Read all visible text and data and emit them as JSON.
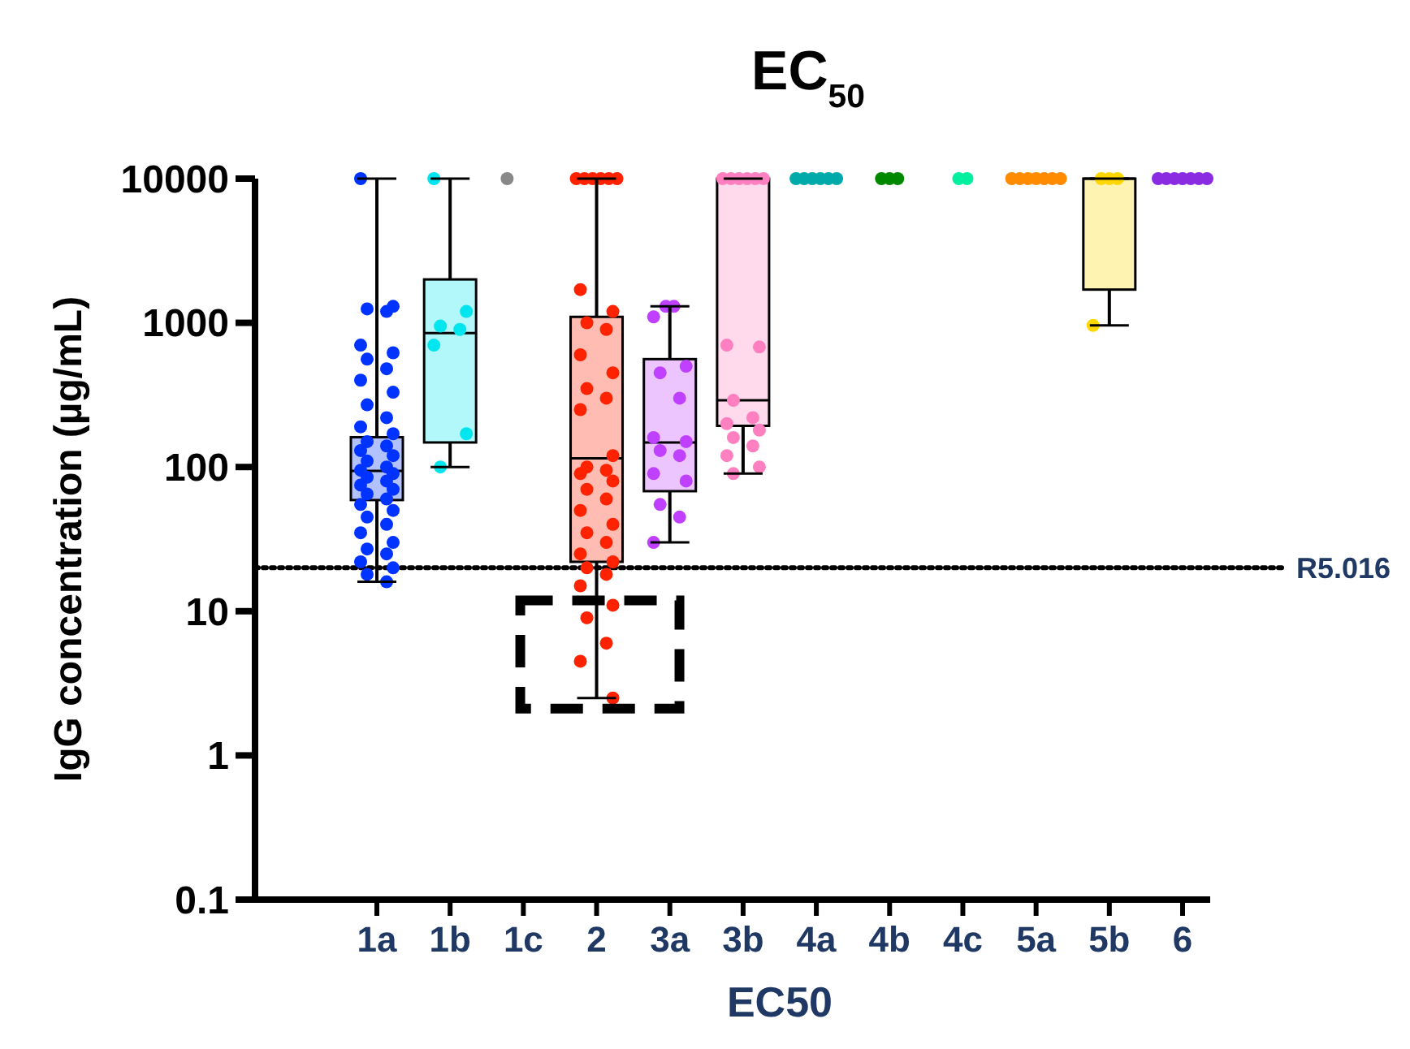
{
  "chart_data": {
    "type": "box",
    "title": "EC$_{50}$",
    "xlabel": "EC50",
    "ylabel": "IgG concentration (µg/mL)",
    "categories": [
      "1a",
      "1b",
      "1c",
      "2",
      "3a",
      "3b",
      "4a",
      "4b",
      "4c",
      "5a",
      "5b",
      "6"
    ],
    "log": true,
    "ylim": [
      0.1,
      10000
    ],
    "yticks": [
      0.1,
      1,
      10,
      100,
      1000,
      10000
    ],
    "grid": false,
    "ref_lines": [
      {
        "axis": "y",
        "value": 20,
        "label": "R5.016",
        "line_style": "dotted",
        "color": "#000000"
      }
    ],
    "series": [
      {
        "type": "box",
        "colors": [
          "#0033ff",
          "#00e5ee",
          null,
          "#ff2200",
          "#bf40ff",
          "#ff80c0",
          null,
          null,
          null,
          null,
          "#ffd700",
          null
        ],
        "boxes": [
          {
            "low": 16,
            "q1": 59,
            "median": 94,
            "q3": 161,
            "high": 10000
          },
          {
            "low": 100,
            "q1": 148,
            "median": 850,
            "q3": 2000,
            "high": 10000
          },
          null,
          {
            "low": 2.5,
            "q1": 22,
            "median": 115,
            "q3": 1100,
            "high": 10000
          },
          {
            "low": 30,
            "q1": 68,
            "median": 148,
            "q3": 560,
            "high": 1300
          },
          {
            "low": 90,
            "q1": 193,
            "median": 290,
            "q3": 10000,
            "high": 10000
          },
          null,
          null,
          null,
          null,
          {
            "low": 960,
            "q1": 1700,
            "median": 10000,
            "q3": 10000,
            "high": 10000
          },
          null
        ]
      },
      {
        "type": "scatter",
        "color": "#0033ff",
        "x": [
          "1a",
          "1a",
          "1a",
          "1a",
          "1a",
          "1a",
          "1a",
          "1a",
          "1a",
          "1a",
          "1a",
          "1a",
          "1a",
          "1a",
          "1a",
          "1a",
          "1a",
          "1a",
          "1a",
          "1a",
          "1a",
          "1a",
          "1a",
          "1a",
          "1a",
          "1a",
          "1a",
          "1a",
          "1a",
          "1a",
          "1a",
          "1a",
          "1a",
          "1a",
          "1a",
          "1a",
          "1a",
          "1a",
          "1a",
          "1a"
        ],
        "values": [
          10000,
          1300,
          1250,
          1200,
          700,
          620,
          560,
          480,
          400,
          330,
          270,
          220,
          190,
          170,
          150,
          140,
          130,
          120,
          110,
          100,
          95,
          90,
          85,
          80,
          75,
          70,
          65,
          60,
          55,
          50,
          45,
          40,
          35,
          30,
          27,
          25,
          22,
          20,
          18,
          16
        ]
      },
      {
        "type": "scatter",
        "color": "#00e5ee",
        "x": [
          "1b",
          "1b",
          "1b",
          "1b",
          "1b",
          "1b",
          "1b"
        ],
        "values": [
          10000,
          1200,
          950,
          900,
          700,
          170,
          100
        ]
      },
      {
        "type": "scatter",
        "color": "#888888",
        "x": [
          "1c"
        ],
        "values": [
          10000
        ]
      },
      {
        "type": "scatter",
        "color": "#ff2200",
        "x": [
          "2",
          "2",
          "2",
          "2",
          "2",
          "2",
          "2",
          "2",
          "2",
          "2",
          "2",
          "2",
          "2",
          "2",
          "2",
          "2",
          "2",
          "2",
          "2",
          "2",
          "2",
          "2",
          "2",
          "2",
          "2",
          "2",
          "2",
          "2",
          "2",
          "2",
          "2",
          "2",
          "2",
          "2",
          "2",
          "2"
        ],
        "values": [
          10000,
          10000,
          10000,
          10000,
          10000,
          10000,
          1700,
          1200,
          1000,
          900,
          600,
          450,
          350,
          300,
          250,
          120,
          100,
          95,
          90,
          80,
          70,
          60,
          50,
          40,
          35,
          30,
          25,
          22,
          20,
          18,
          15,
          11,
          9,
          6,
          4.5,
          2.5
        ]
      },
      {
        "type": "scatter",
        "color": "#bf40ff",
        "x": [
          "3a",
          "3a",
          "3a",
          "3a",
          "3a",
          "3a",
          "3a",
          "3a",
          "3a",
          "3a",
          "3a",
          "3a",
          "3a",
          "3a",
          "3a"
        ],
        "values": [
          1300,
          1300,
          1100,
          500,
          450,
          300,
          160,
          150,
          130,
          120,
          90,
          80,
          55,
          45,
          30
        ]
      },
      {
        "type": "scatter",
        "color": "#ff80c0",
        "x": [
          "3b",
          "3b",
          "3b",
          "3b",
          "3b",
          "3b",
          "3b",
          "3b",
          "3b",
          "3b",
          "3b",
          "3b",
          "3b",
          "3b",
          "3b",
          "3b",
          "3b"
        ],
        "values": [
          10000,
          10000,
          10000,
          10000,
          10000,
          10000,
          700,
          680,
          290,
          220,
          200,
          180,
          160,
          140,
          120,
          100,
          90
        ]
      },
      {
        "type": "scatter",
        "color": "#00aaaa",
        "x": [
          "4a",
          "4a",
          "4a",
          "4a",
          "4a",
          "4a"
        ],
        "values": [
          10000,
          10000,
          10000,
          10000,
          10000,
          10000
        ]
      },
      {
        "type": "scatter",
        "color": "#008800",
        "x": [
          "4b",
          "4b",
          "4b"
        ],
        "values": [
          10000,
          10000,
          10000
        ]
      },
      {
        "type": "scatter",
        "color": "#00f0a0",
        "x": [
          "4c",
          "4c"
        ],
        "values": [
          10000,
          10000
        ]
      },
      {
        "type": "scatter",
        "color": "#ff8c00",
        "x": [
          "5a",
          "5a",
          "5a",
          "5a",
          "5a",
          "5a",
          "5a"
        ],
        "values": [
          10000,
          10000,
          10000,
          10000,
          10000,
          10000,
          10000
        ]
      },
      {
        "type": "scatter",
        "color": "#ffd700",
        "x": [
          "5b",
          "5b",
          "5b",
          "5b"
        ],
        "values": [
          10000,
          10000,
          10000,
          960
        ]
      },
      {
        "type": "scatter",
        "color": "#8a2be2",
        "x": [
          "6",
          "6",
          "6",
          "6",
          "6",
          "6",
          "6"
        ],
        "values": [
          10000,
          10000,
          10000,
          10000,
          10000,
          10000,
          10000
        ]
      }
    ]
  }
}
